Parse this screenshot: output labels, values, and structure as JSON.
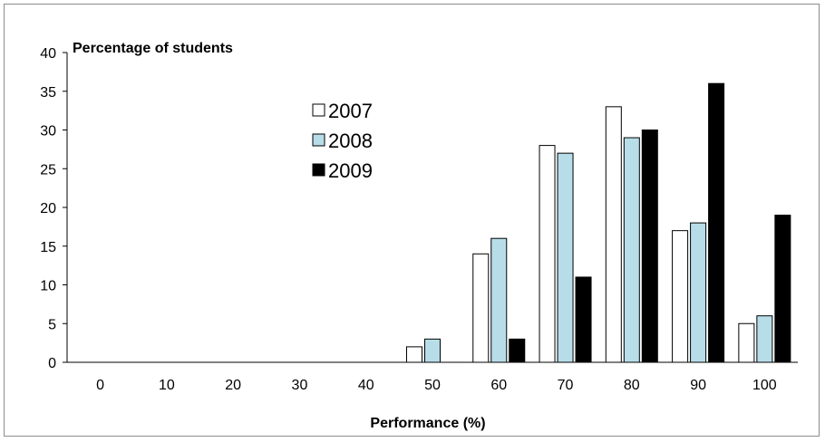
{
  "chart_data": {
    "type": "bar",
    "title": "",
    "ylabel": "Percentage of students",
    "xlabel": "Performance (%)",
    "categories": [
      "0",
      "10",
      "20",
      "30",
      "40",
      "50",
      "60",
      "70",
      "80",
      "90",
      "100"
    ],
    "ylim": [
      0,
      40
    ],
    "yticks": [
      "0",
      "5",
      "10",
      "15",
      "20",
      "25",
      "30",
      "35",
      "40"
    ],
    "grid": false,
    "legend_placement": "upper-center",
    "series": [
      {
        "name": "2007",
        "color": "#ffffff",
        "values": [
          0,
          0,
          0,
          0,
          0,
          2,
          14,
          28,
          33,
          17,
          5
        ]
      },
      {
        "name": "2008",
        "color": "#b7dde8",
        "values": [
          0,
          0,
          0,
          0,
          0,
          3,
          16,
          27,
          29,
          18,
          6
        ]
      },
      {
        "name": "2009",
        "color": "#000000",
        "values": [
          0,
          0,
          0,
          0,
          0,
          0,
          3,
          11,
          30,
          36,
          19
        ]
      }
    ]
  }
}
